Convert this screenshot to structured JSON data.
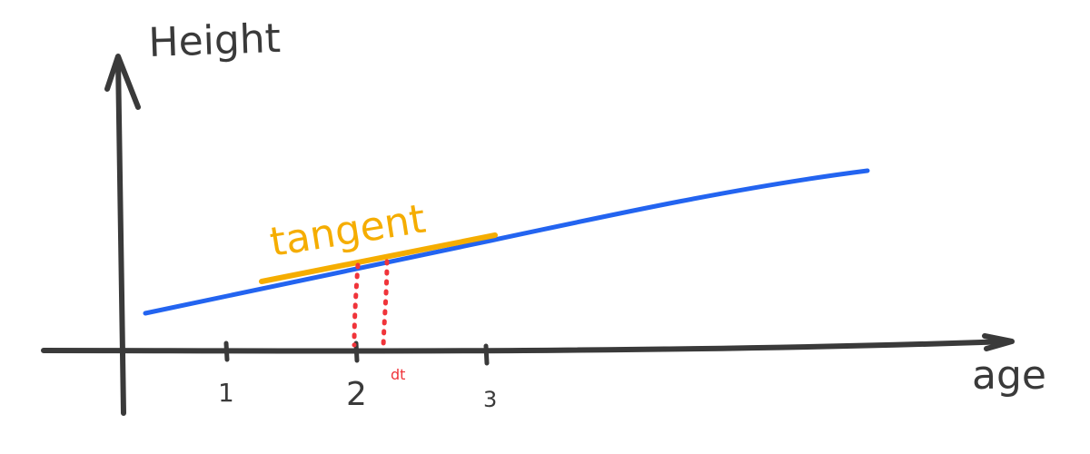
{
  "diagram": {
    "y_axis_label": "Height",
    "x_axis_label": "age",
    "tangent_label": "tangent",
    "tick_labels": [
      "1",
      "2",
      "3"
    ],
    "small_interval_label": "dt",
    "colors": {
      "axes": "#3a3a3a",
      "curve": "#2364f0",
      "tangent": "#f5ad00",
      "marker": "#f0343a"
    }
  }
}
